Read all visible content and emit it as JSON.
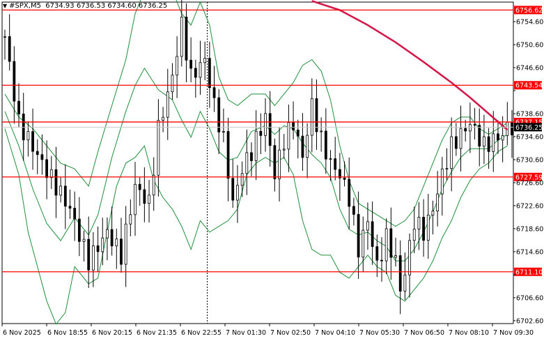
{
  "header": {
    "symbol": "#SPX,M5",
    "ohlc": "6734.93 6736.53 6734.60 6736.25"
  },
  "colors": {
    "background": "#ffffff",
    "candle": "#000000",
    "bollinger": "#1f8f3a",
    "moving_average": "#d41a4a",
    "level_line": "#ff0000",
    "price_line": "#c8c8c8",
    "level_label_bg": "#ff0000",
    "current_price_bg": "#000000"
  },
  "chart_data": {
    "type": "candlestick",
    "y_ticks": [
      "6754.60",
      "6750.60",
      "6746.60",
      "6742.60",
      "6738.60",
      "6734.60",
      "6730.60",
      "6726.60",
      "6722.60",
      "6718.60",
      "6714.60",
      "6710.60",
      "6706.60",
      "6702.60"
    ],
    "x_ticks": [
      "6 Nov 2025",
      "6 Nov 18:55",
      "6 Nov 20:15",
      "6 Nov 21:35",
      "6 Nov 22:55",
      "7 Nov 01:30",
      "7 Nov 02:50",
      "7 Nov 04:10",
      "7 Nov 05:30",
      "7 Nov 06:50",
      "7 Nov 08:10",
      "7 Nov 09:30"
    ],
    "ylim": [
      6702.1,
      6758.0
    ],
    "levels": [
      {
        "label": "6756.62",
        "value": 6756.62
      },
      {
        "label": "6743.54",
        "value": 6743.54
      },
      {
        "label": "6737.15",
        "value": 6737.15
      },
      {
        "label": "6727.59",
        "value": 6727.59
      },
      {
        "label": "6711.10",
        "value": 6711.1
      }
    ],
    "current_price": {
      "label": "6736.25",
      "value": 6736.25
    },
    "close_path": [
      [
        0,
        6752
      ],
      [
        3,
        6737
      ],
      [
        8,
        6730
      ],
      [
        14,
        6722
      ],
      [
        18,
        6713
      ],
      [
        22,
        6718
      ],
      [
        25,
        6714
      ],
      [
        28,
        6726
      ],
      [
        31,
        6723
      ],
      [
        33,
        6736
      ],
      [
        36,
        6745
      ],
      [
        38,
        6754
      ],
      [
        40,
        6745
      ],
      [
        43,
        6748
      ],
      [
        45,
        6740
      ],
      [
        47,
        6734
      ],
      [
        49,
        6723
      ],
      [
        51,
        6729
      ],
      [
        53,
        6732
      ],
      [
        56,
        6738
      ],
      [
        58,
        6728
      ],
      [
        60,
        6734
      ],
      [
        62,
        6737
      ],
      [
        64,
        6731
      ],
      [
        66,
        6740
      ],
      [
        68,
        6734
      ],
      [
        70,
        6730
      ],
      [
        72,
        6728
      ],
      [
        74,
        6724
      ],
      [
        76,
        6715
      ],
      [
        78,
        6720
      ],
      [
        80,
        6712
      ],
      [
        82,
        6717
      ],
      [
        84,
        6713
      ],
      [
        85,
        6708
      ],
      [
        86,
        6711
      ],
      [
        88,
        6720
      ],
      [
        90,
        6718
      ],
      [
        92,
        6722
      ],
      [
        94,
        6728
      ],
      [
        96,
        6733
      ],
      [
        98,
        6735
      ],
      [
        100,
        6737
      ],
      [
        103,
        6733
      ],
      [
        105,
        6734
      ],
      [
        107,
        6735
      ],
      [
        108,
        6736.25
      ]
    ],
    "bollinger_upper": [
      [
        0,
        6742
      ],
      [
        3,
        6738
      ],
      [
        6,
        6736
      ],
      [
        9,
        6733
      ],
      [
        12,
        6730
      ],
      [
        15,
        6729
      ],
      [
        18,
        6726
      ],
      [
        20,
        6732
      ],
      [
        23,
        6740
      ],
      [
        26,
        6748
      ],
      [
        28,
        6756
      ],
      [
        30,
        6760
      ],
      [
        33,
        6760
      ],
      [
        36,
        6760
      ],
      [
        38,
        6756
      ],
      [
        40,
        6754
      ],
      [
        42,
        6758
      ],
      [
        44,
        6754
      ],
      [
        46,
        6745
      ],
      [
        48,
        6741
      ],
      [
        50,
        6740
      ],
      [
        53,
        6742
      ],
      [
        56,
        6742
      ],
      [
        58,
        6740
      ],
      [
        60,
        6742
      ],
      [
        62,
        6744
      ],
      [
        64,
        6747
      ],
      [
        66,
        6748
      ],
      [
        68,
        6746
      ],
      [
        70,
        6741
      ],
      [
        72,
        6733
      ],
      [
        74,
        6727
      ],
      [
        76,
        6723
      ],
      [
        78,
        6722
      ],
      [
        80,
        6721
      ],
      [
        82,
        6720
      ],
      [
        84,
        6719
      ],
      [
        86,
        6720
      ],
      [
        88,
        6722
      ],
      [
        90,
        6726
      ],
      [
        92,
        6730
      ],
      [
        94,
        6734
      ],
      [
        96,
        6737
      ],
      [
        98,
        6738
      ],
      [
        100,
        6738
      ],
      [
        102,
        6736
      ],
      [
        104,
        6735
      ],
      [
        106,
        6736
      ],
      [
        108,
        6737
      ]
    ],
    "bollinger_lower": [
      [
        0,
        6736
      ],
      [
        3,
        6728
      ],
      [
        5,
        6718
      ],
      [
        7,
        6712
      ],
      [
        9,
        6706
      ],
      [
        11,
        6702
      ],
      [
        13,
        6704
      ],
      [
        15,
        6712
      ],
      [
        18,
        6709
      ],
      [
        20,
        6710
      ],
      [
        22,
        6718
      ],
      [
        24,
        6726
      ],
      [
        26,
        6730
      ],
      [
        28,
        6731
      ],
      [
        30,
        6733
      ],
      [
        32,
        6727
      ],
      [
        34,
        6724
      ],
      [
        36,
        6722
      ],
      [
        38,
        6719
      ],
      [
        40,
        6715
      ],
      [
        42,
        6720
      ],
      [
        44,
        6718
      ],
      [
        46,
        6719
      ],
      [
        48,
        6720
      ],
      [
        50,
        6722
      ],
      [
        52,
        6728
      ],
      [
        54,
        6730
      ],
      [
        56,
        6731
      ],
      [
        58,
        6730
      ],
      [
        60,
        6731
      ],
      [
        62,
        6728
      ],
      [
        64,
        6720
      ],
      [
        66,
        6715
      ],
      [
        68,
        6714
      ],
      [
        70,
        6714
      ],
      [
        72,
        6711
      ],
      [
        74,
        6710
      ],
      [
        76,
        6712
      ],
      [
        78,
        6714
      ],
      [
        80,
        6712
      ],
      [
        82,
        6711
      ],
      [
        84,
        6707
      ],
      [
        86,
        6706
      ],
      [
        88,
        6708
      ],
      [
        90,
        6710
      ],
      [
        92,
        6713
      ],
      [
        94,
        6717
      ],
      [
        96,
        6720
      ],
      [
        98,
        6724
      ],
      [
        100,
        6727
      ],
      [
        102,
        6729
      ],
      [
        104,
        6730
      ],
      [
        106,
        6732
      ],
      [
        108,
        6733
      ]
    ],
    "moving_average": [
      [
        66,
        6758.2
      ],
      [
        72,
        6756.6
      ],
      [
        78,
        6754.0
      ],
      [
        84,
        6751.0
      ],
      [
        90,
        6747.6
      ],
      [
        96,
        6744.0
      ],
      [
        100,
        6741.4
      ],
      [
        104,
        6738.6
      ],
      [
        108,
        6735.8
      ]
    ],
    "crosshair_x": 43.5,
    "x_count": 110
  }
}
